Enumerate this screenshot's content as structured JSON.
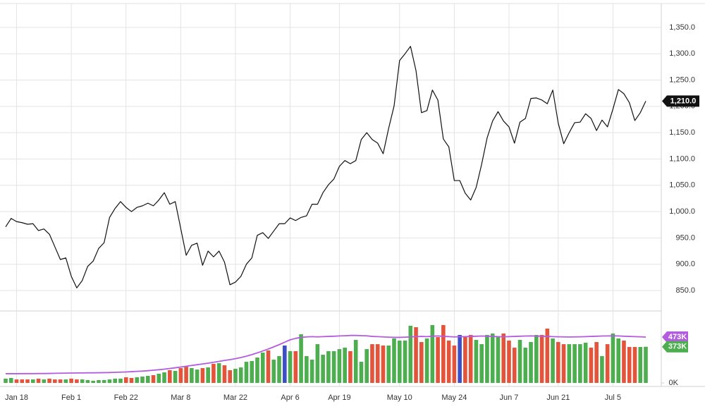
{
  "chart_data": [
    {
      "type": "line",
      "color": "#111111",
      "categories": [
        null,
        null,
        "Jan 18",
        null,
        null,
        null,
        null,
        null,
        null,
        null,
        null,
        null,
        "Feb 1",
        null,
        null,
        null,
        null,
        null,
        null,
        null,
        null,
        null,
        "Feb 22",
        null,
        null,
        null,
        null,
        null,
        null,
        null,
        null,
        null,
        "Mar 8",
        null,
        null,
        null,
        null,
        null,
        null,
        null,
        null,
        null,
        "Mar 22",
        null,
        null,
        null,
        null,
        null,
        null,
        null,
        null,
        null,
        "Apr 6",
        null,
        null,
        null,
        null,
        null,
        null,
        null,
        null,
        "Apr 19",
        null,
        null,
        null,
        null,
        null,
        null,
        null,
        null,
        null,
        null,
        "May 10",
        null,
        null,
        null,
        null,
        null,
        null,
        null,
        null,
        null,
        "May 24",
        null,
        null,
        null,
        null,
        null,
        null,
        null,
        null,
        null,
        "Jun 7",
        null,
        null,
        null,
        null,
        null,
        null,
        null,
        null,
        "Jun 21",
        null,
        null,
        null,
        null,
        null,
        null,
        null,
        null,
        null,
        "Jul 5",
        null,
        null,
        null,
        null,
        null,
        null
      ],
      "values": [
        971,
        987,
        981,
        979,
        976,
        977,
        964,
        967,
        957,
        933,
        909,
        912,
        877,
        855,
        869,
        896,
        906,
        930,
        941,
        989,
        1006,
        1019,
        1008,
        1000,
        1008,
        1011,
        1016,
        1011,
        1022,
        1036,
        1014,
        1019,
        968,
        917,
        936,
        940,
        898,
        925,
        914,
        925,
        904,
        861,
        866,
        877,
        900,
        912,
        955,
        960,
        949,
        963,
        977,
        977,
        988,
        983,
        989,
        992,
        1014,
        1014,
        1036,
        1051,
        1062,
        1086,
        1097,
        1091,
        1097,
        1137,
        1150,
        1137,
        1130,
        1110,
        1158,
        1201,
        1287,
        1300,
        1314,
        1268,
        1188,
        1192,
        1231,
        1212,
        1138,
        1123,
        1059,
        1059,
        1035,
        1022,
        1046,
        1090,
        1140,
        1172,
        1190,
        1172,
        1161,
        1130,
        1170,
        1177,
        1215,
        1216,
        1212,
        1205,
        1231,
        1168,
        1129,
        1150,
        1169,
        1170,
        1186,
        1177,
        1154,
        1174,
        1161,
        1195,
        1232,
        1224,
        1207,
        1173,
        1188,
        1210
      ],
      "ylim": [
        812.5,
        1395.4
      ],
      "yticks": [
        {
          "value": 850,
          "label": "850.0"
        },
        {
          "value": 900,
          "label": "900.0"
        },
        {
          "value": 950,
          "label": "950.0"
        },
        {
          "value": 1000,
          "label": "1,000.0"
        },
        {
          "value": 1050,
          "label": "1,050.0"
        },
        {
          "value": 1100,
          "label": "1,100.0"
        },
        {
          "value": 1150,
          "label": "1,150.0"
        },
        {
          "value": 1200,
          "label": "1,200.0"
        },
        {
          "value": 1250,
          "label": "1,250.0"
        },
        {
          "value": 1300,
          "label": "1,300.0"
        },
        {
          "value": 1350,
          "label": "1,350.0"
        }
      ],
      "grid": true,
      "last_tag": {
        "value": 1210,
        "label": "1,210.0",
        "color": "#111111"
      }
    },
    {
      "type": "bar",
      "series": [
        {
          "type": "bar",
          "values": [
            44,
            51,
            36,
            36,
            36,
            36,
            44,
            36,
            44,
            36,
            36,
            36,
            44,
            36,
            36,
            29,
            22,
            29,
            29,
            36,
            44,
            44,
            58,
            51,
            58,
            66,
            73,
            80,
            95,
            109,
            131,
            124,
            153,
            167,
            153,
            138,
            153,
            160,
            197,
            204,
            182,
            131,
            146,
            160,
            218,
            226,
            262,
            313,
            335,
            240,
            277,
            386,
            328,
            328,
            502,
            277,
            240,
            400,
            291,
            328,
            328,
            349,
            364,
            328,
            444,
            218,
            349,
            400,
            400,
            386,
            386,
            459,
            437,
            437,
            590,
            575,
            422,
            459,
            597,
            473,
            597,
            437,
            386,
            495,
            473,
            495,
            444,
            400,
            495,
            510,
            473,
            510,
            437,
            364,
            444,
            364,
            422,
            495,
            495,
            561,
            459,
            422,
            400,
            400,
            400,
            400,
            415,
            364,
            422,
            277,
            400,
            510,
            459,
            437,
            371,
            371,
            371,
            373
          ],
          "colors": [
            "#4cae4f",
            "#4cae4f",
            "#e4543a",
            "#e4543a",
            "#e4543a",
            "#4cae4f",
            "#e4543a",
            "#4cae4f",
            "#e4543a",
            "#e4543a",
            "#e4543a",
            "#4cae4f",
            "#e4543a",
            "#e4543a",
            "#4cae4f",
            "#4cae4f",
            "#4cae4f",
            "#4cae4f",
            "#4cae4f",
            "#4cae4f",
            "#4cae4f",
            "#4cae4f",
            "#e4543a",
            "#e4543a",
            "#4cae4f",
            "#4cae4f",
            "#4cae4f",
            "#e4543a",
            "#4cae4f",
            "#4cae4f",
            "#e4543a",
            "#4cae4f",
            "#e4543a",
            "#e4543a",
            "#4cae4f",
            "#4cae4f",
            "#e4543a",
            "#4cae4f",
            "#e4543a",
            "#4cae4f",
            "#e4543a",
            "#e4543a",
            "#4cae4f",
            "#4cae4f",
            "#4cae4f",
            "#4cae4f",
            "#4cae4f",
            "#4cae4f",
            "#e4543a",
            "#4cae4f",
            "#4cae4f",
            "#3c4fc8",
            "#4cae4f",
            "#e4543a",
            "#4cae4f",
            "#4cae4f",
            "#4cae4f",
            "#4cae4f",
            "#4cae4f",
            "#4cae4f",
            "#4cae4f",
            "#4cae4f",
            "#4cae4f",
            "#e4543a",
            "#4cae4f",
            "#4cae4f",
            "#4cae4f",
            "#e4543a",
            "#e4543a",
            "#e4543a",
            "#4cae4f",
            "#4cae4f",
            "#4cae4f",
            "#4cae4f",
            "#4cae4f",
            "#e4543a",
            "#e4543a",
            "#4cae4f",
            "#4cae4f",
            "#e4543a",
            "#e4543a",
            "#e4543a",
            "#e4543a",
            "#3c4fc8",
            "#e4543a",
            "#e4543a",
            "#4cae4f",
            "#4cae4f",
            "#4cae4f",
            "#4cae4f",
            "#4cae4f",
            "#e4543a",
            "#e4543a",
            "#e4543a",
            "#4cae4f",
            "#4cae4f",
            "#4cae4f",
            "#4cae4f",
            "#e4543a",
            "#e4543a",
            "#4cae4f",
            "#e4543a",
            "#e4543a",
            "#4cae4f",
            "#4cae4f",
            "#4cae4f",
            "#4cae4f",
            "#e4543a",
            "#e4543a",
            "#4cae4f",
            "#e4543a",
            "#4cae4f",
            "#4cae4f",
            "#e4543a",
            "#e4543a",
            "#e4543a",
            "#4cae4f",
            "#4cae4f"
          ]
        },
        {
          "type": "line",
          "color": "#b35ce0",
          "values": [
            95,
            95,
            95,
            96,
            96,
            96,
            97,
            97,
            98,
            99,
            100,
            101,
            102,
            103,
            103,
            104,
            104,
            105,
            106,
            107,
            109,
            111,
            113,
            116,
            119,
            122,
            126,
            131,
            136,
            142,
            149,
            156,
            164,
            172,
            180,
            188,
            196,
            204,
            213,
            222,
            232,
            240,
            250,
            262,
            276,
            292,
            310,
            330,
            350,
            372,
            395,
            420,
            445,
            460,
            470,
            475,
            478,
            475,
            478,
            480,
            482,
            485,
            487,
            490,
            490,
            488,
            486,
            480,
            478,
            475,
            472,
            470,
            470,
            472,
            475,
            478,
            480,
            478,
            482,
            485,
            480,
            478,
            475,
            476,
            478,
            480,
            482,
            484,
            482,
            480,
            478,
            476,
            478,
            480,
            482,
            484,
            485,
            484,
            482,
            480,
            478,
            476,
            475,
            474,
            475,
            476,
            478,
            480,
            482,
            484,
            485,
            486,
            485,
            482,
            480,
            478,
            476,
            473
          ]
        }
      ],
      "ylim": [
        0,
        728
      ],
      "yticks": [
        {
          "value": 0,
          "label": "0K"
        }
      ],
      "last_tags": [
        {
          "value": 473,
          "label": "473K",
          "color": "#b35ce0"
        },
        {
          "value": 373,
          "label": "373K",
          "color": "#4cae4f"
        }
      ]
    }
  ]
}
